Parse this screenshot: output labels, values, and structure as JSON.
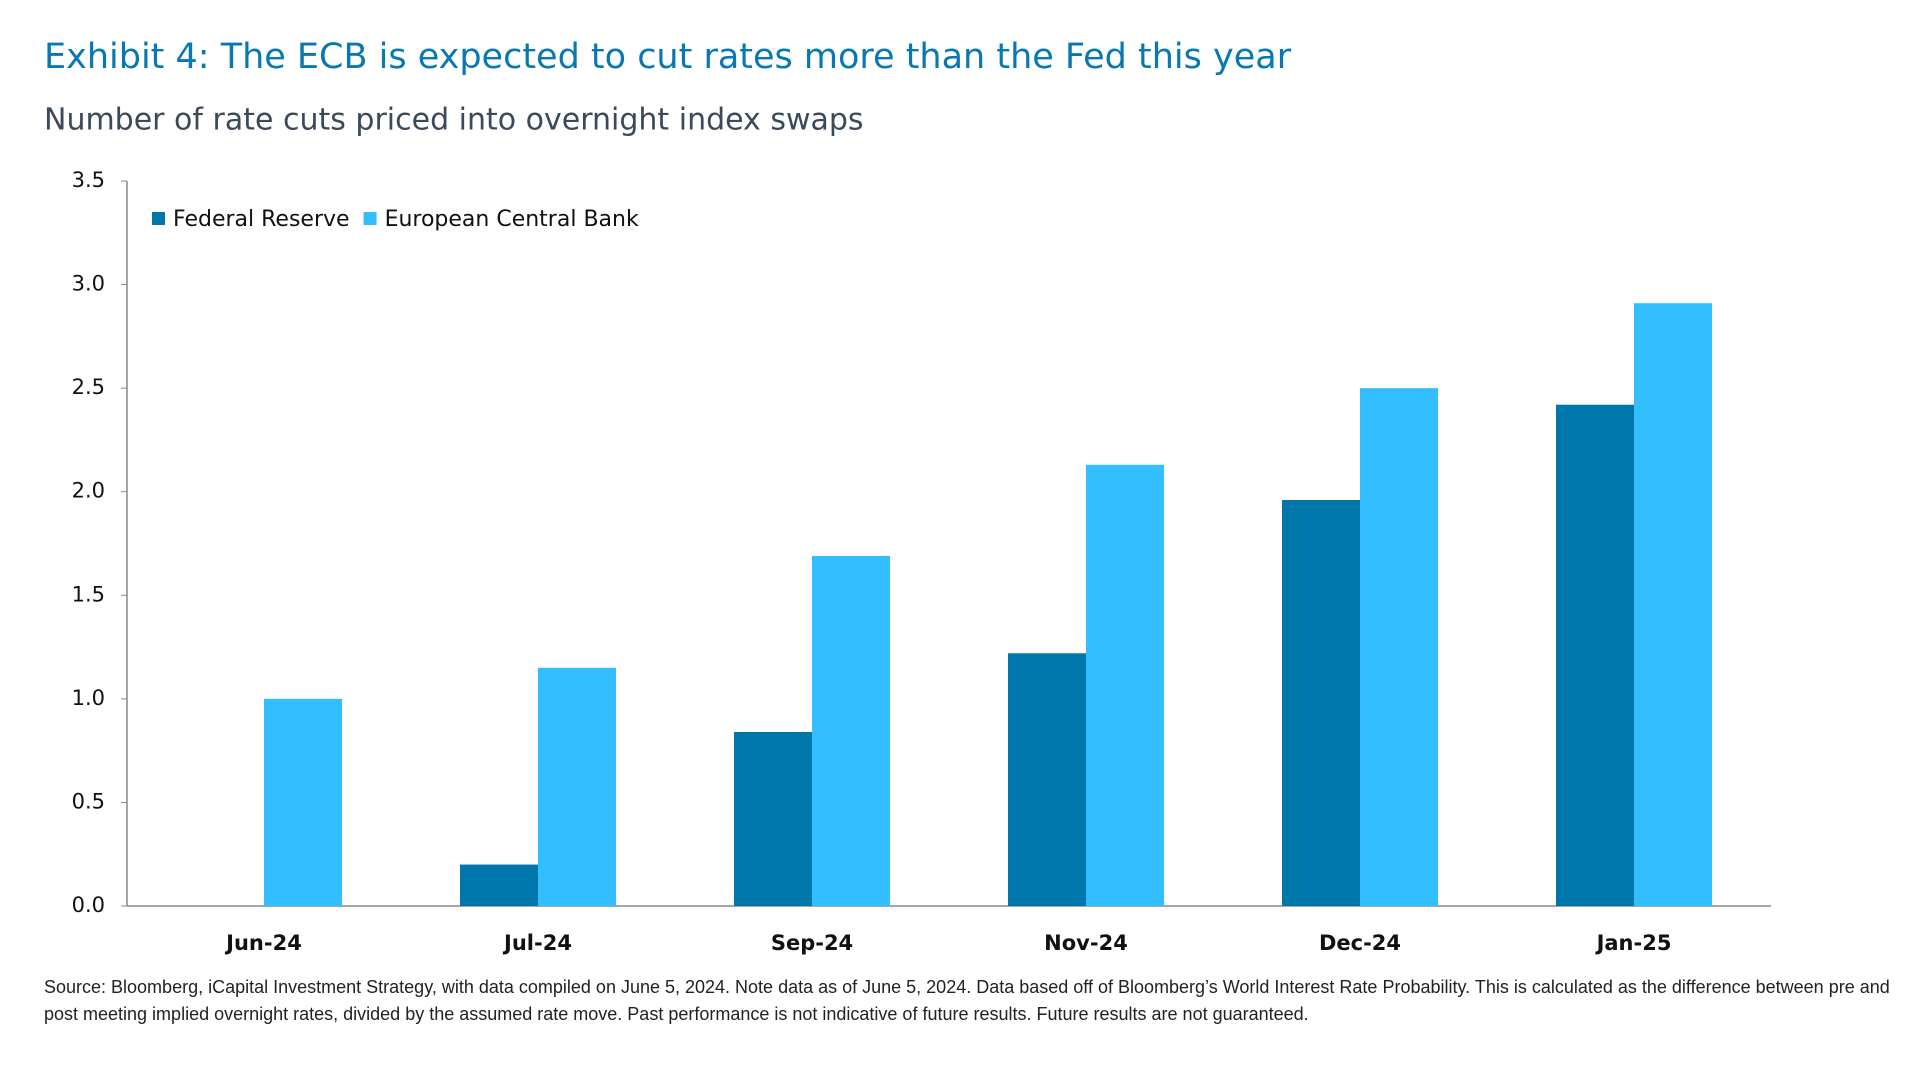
{
  "chart_data": {
    "type": "bar",
    "title": "Exhibit 4: The ECB is expected to cut rates more than the Fed this year",
    "subtitle": "Number of rate cuts priced into overnight index swaps",
    "categories": [
      "Jun-24",
      "Jul-24",
      "Sep-24",
      "Nov-24",
      "Dec-24",
      "Jan-25"
    ],
    "series": [
      {
        "name": "Federal Reserve",
        "color": "#0077aa",
        "values": [
          0,
          0.2,
          0.84,
          1.22,
          1.96,
          2.42
        ]
      },
      {
        "name": "European Central Bank",
        "color": "#33bfff",
        "values": [
          1.0,
          1.15,
          1.69,
          2.13,
          2.5,
          2.91
        ]
      }
    ],
    "ylim": [
      0,
      3.5
    ],
    "yticks": [
      {
        "value": 0,
        "label": "0.0"
      },
      0.5,
      {
        "value": 1,
        "label": "1.0"
      },
      1.5,
      {
        "value": 2,
        "label": "2.0"
      },
      2.5,
      {
        "value": 3,
        "label": "3.0"
      },
      3.5
    ],
    "grid": false,
    "legend": "top-left",
    "footnote": "Source: Bloomberg, iCapital Investment Strategy, with data compiled on June 5, 2024. Note data as of June 5, 2024. Data based off of Bloomberg’s World Interest Rate Probability. This is calculated as the difference between pre and post meeting implied overnight rates, divided by the assumed rate move. Past performance is not indicative of future results. Future results are not guaranteed."
  }
}
